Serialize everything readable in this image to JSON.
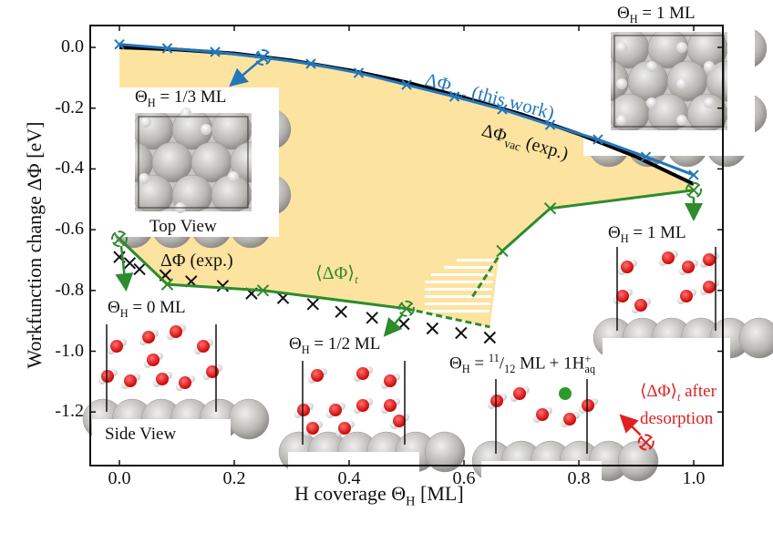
{
  "chart_data": {
    "type": "line",
    "title": "",
    "xlabel": "H coverage Θ_H [ML]",
    "ylabel": "Workfunction change ΔΦ [eV]",
    "xlim": [
      -0.05,
      1.05
    ],
    "ylim": [
      -1.37,
      0.07
    ],
    "xticks": [
      "0.0",
      "0.2",
      "0.4",
      "0.6",
      "0.8",
      "1.0"
    ],
    "yticks": [
      "0.0",
      "-0.2",
      "-0.4",
      "-0.6",
      "-0.8",
      "-1.0",
      "-1.2"
    ],
    "grid": false,
    "series": [
      {
        "name": "ΔΦ_vac (this work)",
        "color": "#2277bb",
        "marker": "x",
        "x": [
          0.0,
          0.0833,
          0.1667,
          0.25,
          0.3333,
          0.4167,
          0.5,
          0.5833,
          0.6667,
          0.75,
          0.8333,
          0.9167,
          1.0
        ],
        "y": [
          0.01,
          -0.003,
          -0.015,
          -0.033,
          -0.054,
          -0.084,
          -0.123,
          -0.162,
          -0.204,
          -0.255,
          -0.303,
          -0.36,
          -0.42
        ]
      },
      {
        "name": "ΔΦ_vac (exp.)",
        "color": "#000000",
        "marker": "none",
        "x": [
          0.0,
          0.1,
          0.2,
          0.3,
          0.4,
          0.5,
          0.6,
          0.7,
          0.8,
          0.9,
          1.0
        ],
        "y": [
          0.0,
          -0.007,
          -0.02,
          -0.043,
          -0.075,
          -0.115,
          -0.165,
          -0.22,
          -0.285,
          -0.36,
          -0.45
        ]
      },
      {
        "name": "⟨ΔΦ⟩_t",
        "color": "#2e8b2e",
        "marker": "x",
        "x": [
          0.0,
          0.0833,
          0.25,
          0.5,
          0.6667,
          0.75,
          1.0
        ],
        "y": [
          -0.63,
          -0.78,
          -0.8,
          -0.86,
          -0.67,
          -0.53,
          -0.47
        ]
      },
      {
        "name": "ΔΦ (exp.)",
        "color": "#000000",
        "marker": "x",
        "x": [
          0.0,
          0.018,
          0.035,
          0.08,
          0.125,
          0.18,
          0.23,
          0.285,
          0.337,
          0.386,
          0.44,
          0.495,
          0.545,
          0.595,
          0.645
        ],
        "y": [
          -0.69,
          -0.71,
          -0.73,
          -0.75,
          -0.77,
          -0.785,
          -0.81,
          -0.825,
          -0.845,
          -0.87,
          -0.89,
          -0.91,
          -0.925,
          -0.94,
          -0.955
        ]
      },
      {
        "name": "⟨ΔΦ⟩_t after desorption",
        "color": "#e02020",
        "marker": "circled-x",
        "x": [
          0.917
        ],
        "y": [
          -1.3
        ]
      }
    ],
    "dashed_segments": [
      {
        "from": [
          0.5,
          -0.86
        ],
        "to": [
          0.645,
          -0.92
        ],
        "color": "#2e8b2e"
      },
      {
        "from": [
          0.615,
          -0.82
        ],
        "to": [
          0.6667,
          -0.67
        ],
        "color": "#2e8b2e"
      }
    ],
    "fill_region": {
      "color": "#fde3a0",
      "between": [
        "ΔΦ_vac (exp.)",
        "⟨ΔΦ⟩_t"
      ]
    },
    "annotations": [
      {
        "text": "ΔΦ_vac (this work)",
        "color": "#2277bb"
      },
      {
        "text": "ΔΦ_vac (exp.)",
        "color": "#000000"
      },
      {
        "text": "ΔΦ (exp.)",
        "color": "#000000"
      },
      {
        "text": "⟨ΔΦ⟩_t",
        "color": "#2e8b2e"
      },
      {
        "text": "⟨ΔΦ⟩_t after desorption",
        "color": "#e02020"
      },
      {
        "text": "Θ_H = 1/3 ML"
      },
      {
        "text": "Θ_H = 1 ML"
      },
      {
        "text": "Θ_H = 0 ML"
      },
      {
        "text": "Θ_H = 1/2 ML"
      },
      {
        "text": "Θ_H = 11/12 ML + 1H+_aq"
      },
      {
        "text": "Top View"
      },
      {
        "text": "Side View"
      }
    ]
  },
  "labels": {
    "xlabel_main": "H coverage Θ",
    "xlabel_sub": "H",
    "xlabel_unit": " [ML]",
    "ylabel": "Workfunction change ΔΦ [eV]",
    "xticks": [
      "0.0",
      "0.2",
      "0.4",
      "0.6",
      "0.8",
      "1.0"
    ],
    "yticks": [
      "0.0",
      "-0.2",
      "-0.4",
      "-0.6",
      "-0.8",
      "-1.0",
      "-1.2"
    ],
    "vac_this_work_main": "ΔΦ",
    "vac_sub": "vac",
    "vac_this_work_suffix": " (this work)",
    "vac_exp_main": "ΔΦ",
    "vac_exp_suffix": " (exp.)",
    "exp_label": "ΔΦ (exp.)",
    "avg_label_main": "⟨ΔΦ⟩",
    "avg_label_sub": "t",
    "desorption_line1_main": "⟨ΔΦ⟩",
    "desorption_line1_sub": "t",
    "desorption_line1_suffix": " after",
    "desorption_line2": "desorption",
    "theta": "Θ",
    "theta_sub": "H",
    "cov_1_3": " = 1/3 ML",
    "cov_1_top": " = 1 ML",
    "cov_1_side": " = 1 ML",
    "cov_0": " = 0 ML",
    "cov_1_2": " = 1/2 ML",
    "cov_11_12_prefix": " = ",
    "cov_11_12_num": "11",
    "cov_11_12_den": "12",
    "cov_11_12_suffix": " ML + 1H",
    "cov_11_12_sup": "+",
    "cov_11_12_sub": "aq",
    "top_view": "Top View",
    "side_view": "Side View"
  }
}
